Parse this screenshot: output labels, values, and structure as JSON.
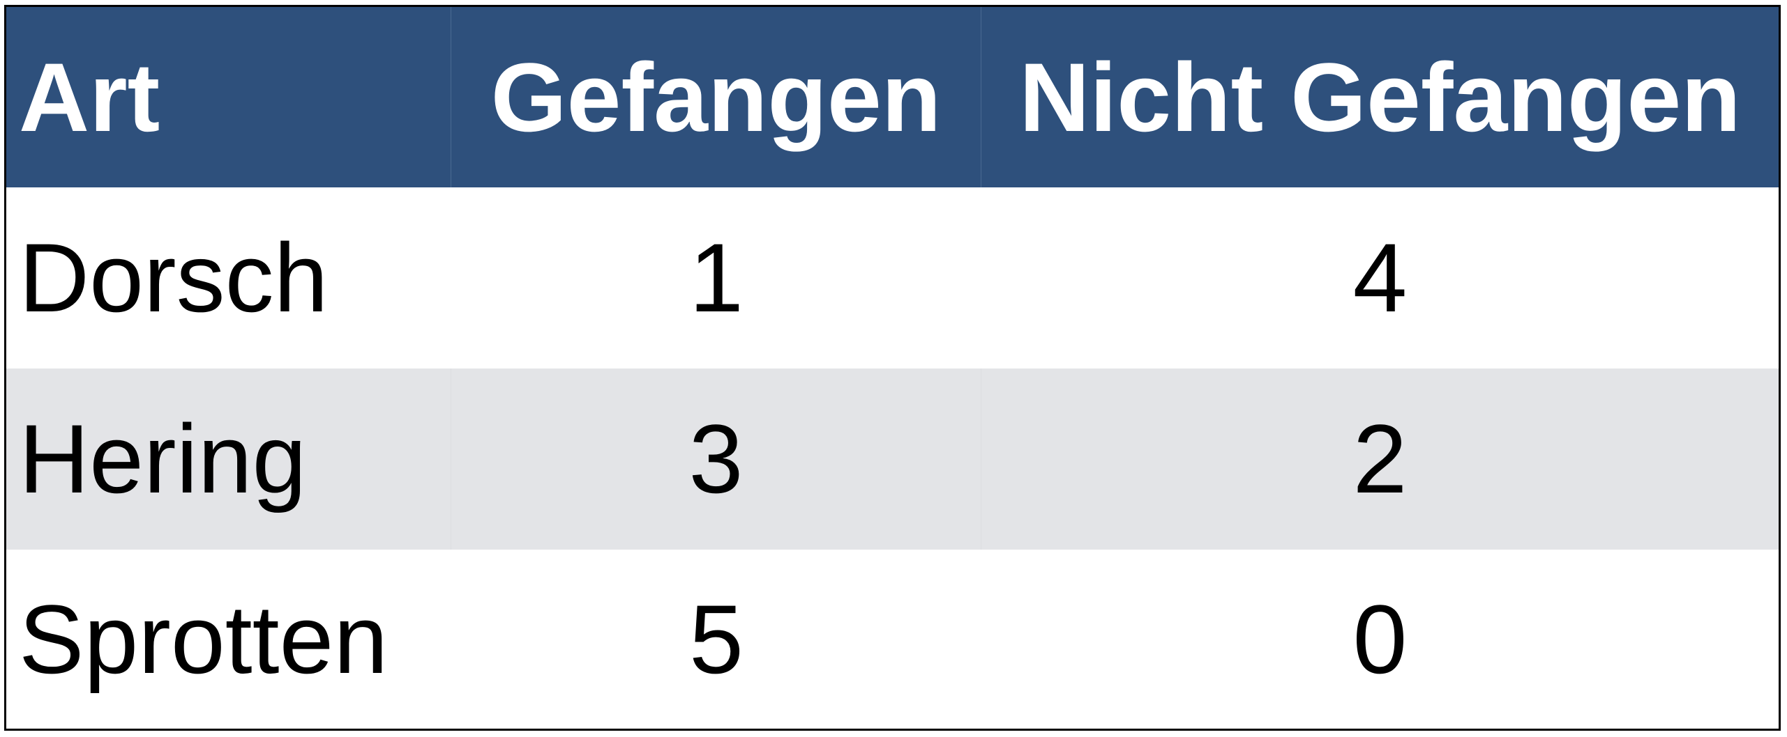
{
  "table": {
    "headers": [
      "Art",
      "Gefangen",
      "Nicht Gefangen"
    ],
    "rows": [
      [
        "Dorsch",
        "1",
        "4"
      ],
      [
        "Hering",
        "3",
        "2"
      ],
      [
        "Sprotten",
        "5",
        "0"
      ]
    ],
    "header_color": "#2e507c",
    "stripe_color": "#e3e4e7"
  }
}
